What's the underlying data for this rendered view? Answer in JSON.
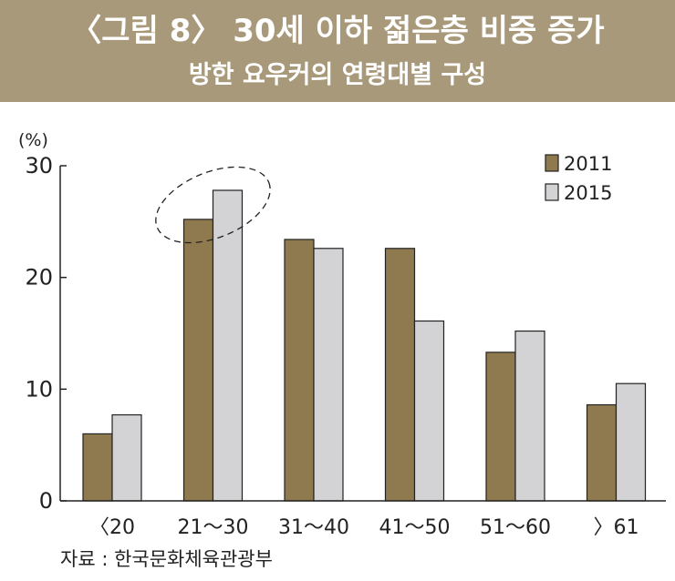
{
  "header": {
    "title": "〈그림 8〉 30세 이하 젊은층 비중 증가",
    "subtitle": "방한 요우커의 연령대별 구성"
  },
  "source": "자료 : 한국문화체육관광부",
  "colors": {
    "header_bg": "#a8997a",
    "series_2011": "#8f7a50",
    "series_2015": "#d3d3d5"
  },
  "chart_data": {
    "type": "bar",
    "categories": [
      "〈20",
      "21～30",
      "31～40",
      "41～50",
      "51～60",
      "〉61"
    ],
    "series": [
      {
        "name": "2011",
        "values": [
          6.0,
          25.2,
          23.4,
          22.6,
          13.3,
          8.6
        ]
      },
      {
        "name": "2015",
        "values": [
          7.7,
          27.8,
          22.6,
          16.1,
          15.2,
          10.5
        ]
      }
    ],
    "ylabel": "(%)",
    "ylim": [
      0,
      30
    ],
    "yticks": [
      0,
      10,
      20,
      30
    ],
    "legend_position": "top-right",
    "highlight": "21～30"
  }
}
